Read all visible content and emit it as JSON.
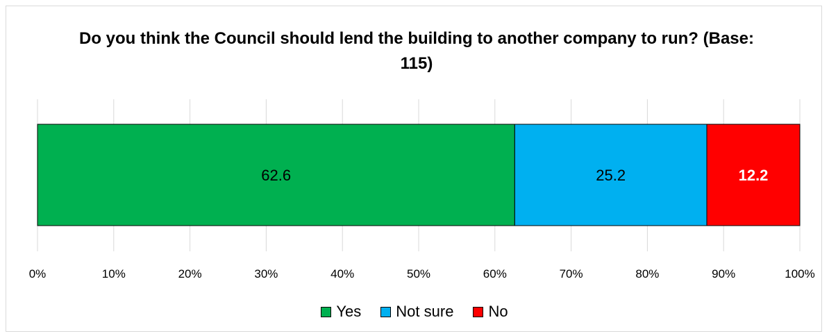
{
  "chart_data": {
    "type": "bar",
    "orientation": "horizontal-stacked-100",
    "title": "Do you think the Council should lend the building to another company to run? (Base: 115)",
    "series": [
      {
        "name": "Yes",
        "value": 62.6,
        "label": "62.6",
        "color": "#00b050",
        "label_color": "#000000",
        "label_bold": false
      },
      {
        "name": "Not sure",
        "value": 25.2,
        "label": "25.2",
        "color": "#00b0f0",
        "label_color": "#000000",
        "label_bold": false
      },
      {
        "name": "No",
        "value": 12.2,
        "label": "12.2",
        "color": "#ff0000",
        "label_color": "#ffffff",
        "label_bold": true
      }
    ],
    "xlim": [
      0,
      100
    ],
    "x_ticks": [
      "0%",
      "10%",
      "20%",
      "30%",
      "40%",
      "50%",
      "60%",
      "70%",
      "80%",
      "90%",
      "100%"
    ],
    "grid": true,
    "legend_position": "bottom"
  }
}
